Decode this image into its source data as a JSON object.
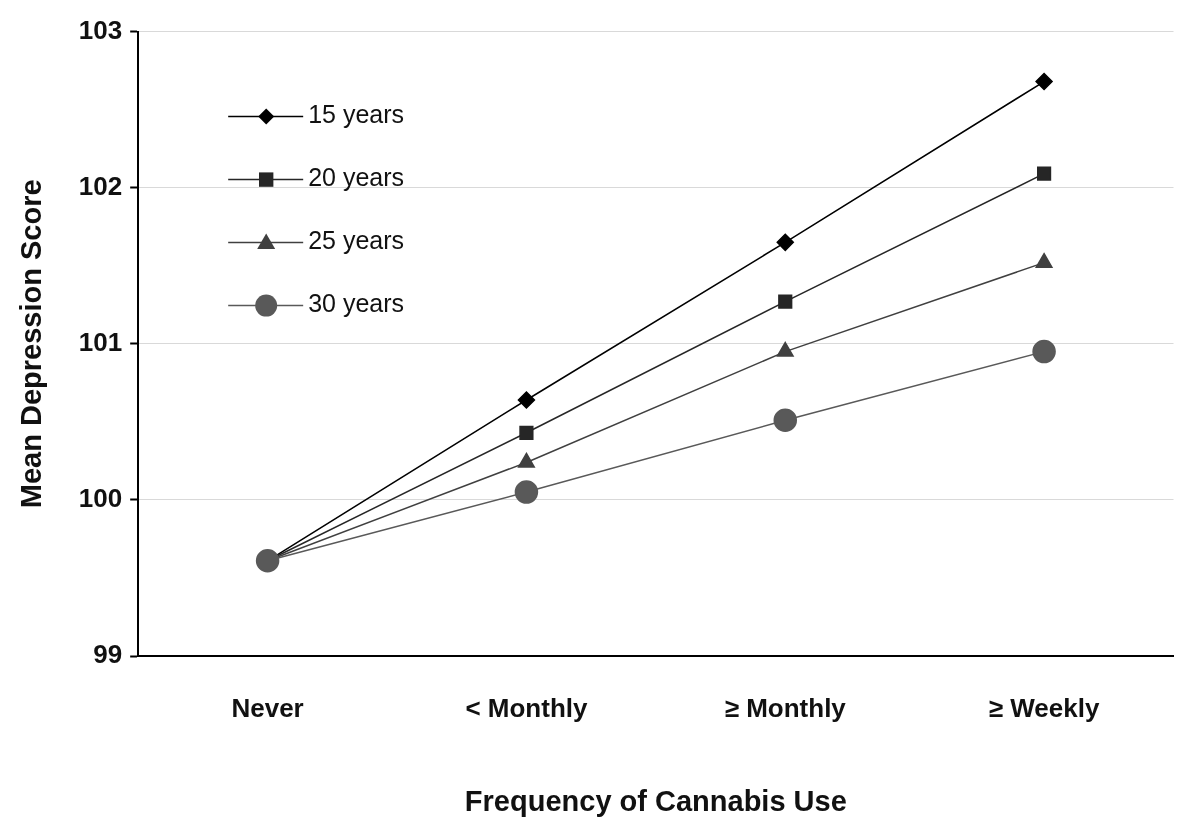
{
  "chart_data": {
    "type": "line",
    "xlabel": "Frequency of Cannabis Use",
    "ylabel": "Mean Depression Score",
    "categories": [
      "Never",
      "< Monthly",
      "≥ Monthly",
      "≥ Weekly"
    ],
    "series": [
      {
        "name": "15 years",
        "color": "#000000",
        "marker": "diamond",
        "values": [
          99.61,
          100.64,
          101.65,
          102.68
        ]
      },
      {
        "name": "20 years",
        "color": "#262626",
        "marker": "square",
        "values": [
          99.61,
          100.43,
          101.27,
          102.09
        ]
      },
      {
        "name": "25 years",
        "color": "#404040",
        "marker": "triangle",
        "values": [
          99.61,
          100.24,
          100.95,
          101.52
        ]
      },
      {
        "name": "30 years",
        "color": "#595959",
        "marker": "circle",
        "values": [
          99.61,
          100.05,
          100.51,
          100.95
        ]
      }
    ],
    "ylim": [
      99,
      103
    ],
    "yticks": [
      99,
      100,
      101,
      102,
      103
    ],
    "grid": "y",
    "legend": "top left",
    "line_style": "solid"
  }
}
